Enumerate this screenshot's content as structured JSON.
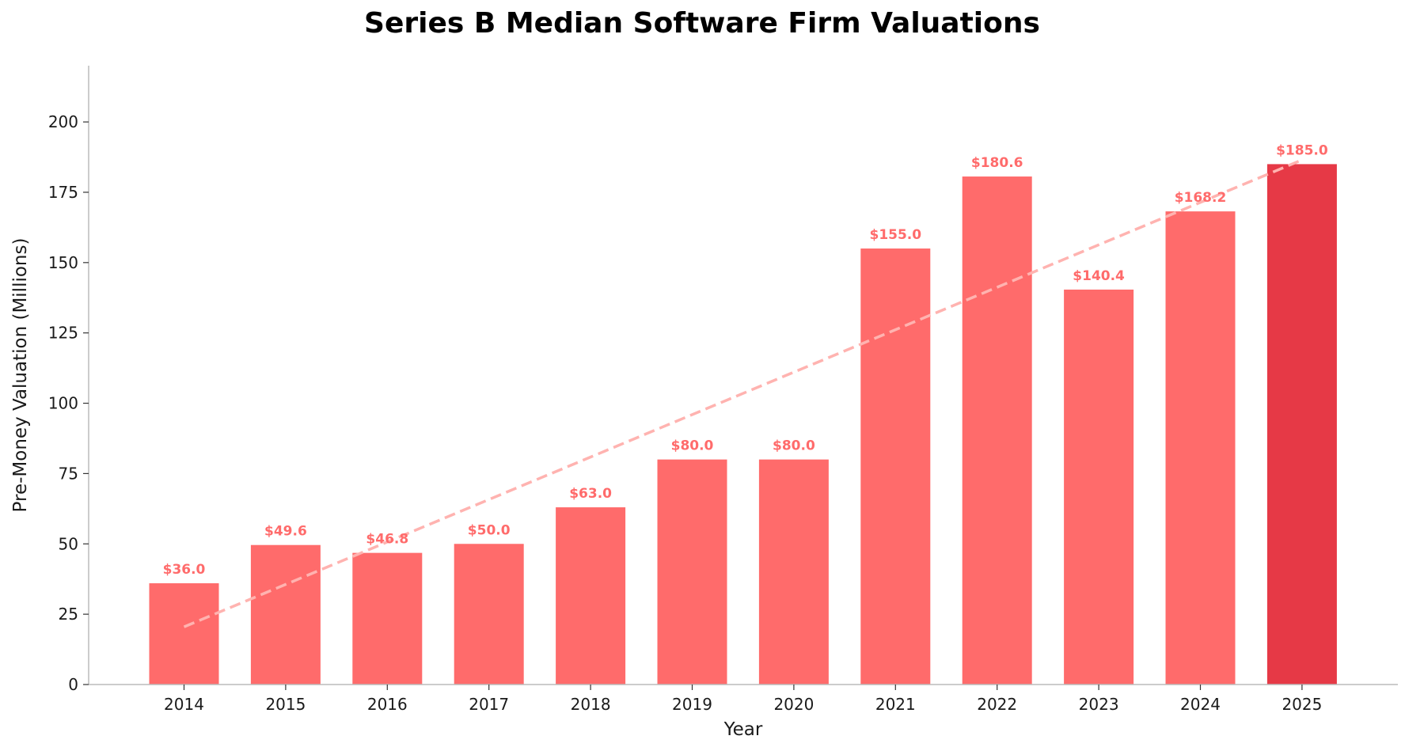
{
  "chart_data": {
    "type": "bar",
    "title": "Series B Median Software Firm Valuations",
    "xlabel": "Year",
    "ylabel": "Pre-Money Valuation (Millions)",
    "categories": [
      "2014",
      "2015",
      "2016",
      "2017",
      "2018",
      "2019",
      "2020",
      "2021",
      "2022",
      "2023",
      "2024",
      "2025"
    ],
    "values": [
      36.0,
      49.6,
      46.8,
      50.0,
      63.0,
      80.0,
      80.0,
      155.0,
      180.6,
      140.4,
      168.2,
      185.0
    ],
    "data_labels": [
      "$36.0",
      "$49.6",
      "$46.8",
      "$50.0",
      "$63.0",
      "$80.0",
      "$80.0",
      "$155.0",
      "$180.6",
      "$140.4",
      "$168.2",
      "$185.0"
    ],
    "ylim": [
      0,
      220
    ],
    "yticks": [
      0,
      25,
      50,
      75,
      100,
      125,
      150,
      175,
      200
    ],
    "trendline": {
      "style": "dashed",
      "x_start": "2014",
      "y_start": 20.5,
      "x_end": "2025",
      "y_end": 186.5
    },
    "grid": false,
    "colors": {
      "bar": "#ff6b6b",
      "highlight_bar": "#e63946",
      "data_label": "#ff6b6b",
      "trendline": "#ffb3b0",
      "axis": "#bbbbbb"
    },
    "highlight_index": 11
  }
}
